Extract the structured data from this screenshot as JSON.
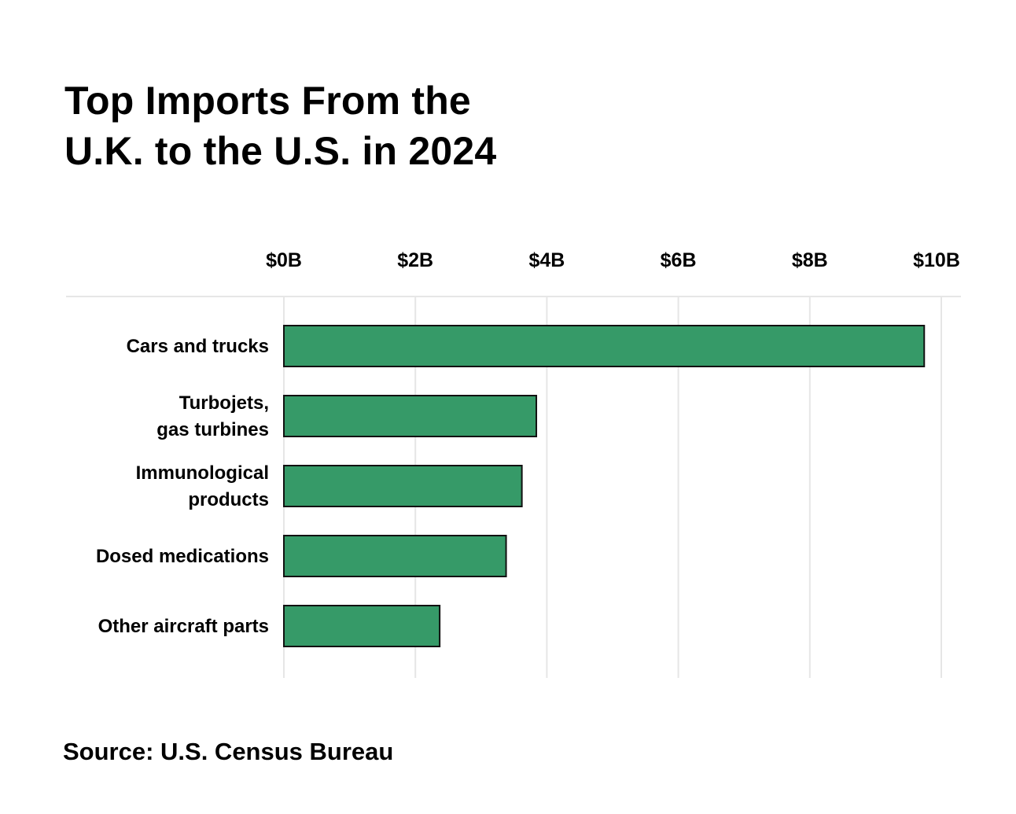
{
  "chart_data": {
    "type": "bar",
    "orientation": "horizontal",
    "title": [
      "Top Imports From the",
      "U.K. to the U.S. in 2024"
    ],
    "categories": [
      [
        "Cars and trucks"
      ],
      [
        "Turbojets,",
        "gas turbines"
      ],
      [
        "Immunological",
        "products"
      ],
      [
        "Dosed medications"
      ],
      [
        "Other aircraft parts"
      ]
    ],
    "values": [
      9.74,
      3.84,
      3.62,
      3.38,
      2.37
    ],
    "unit": "billion USD",
    "xlim": [
      0,
      10
    ],
    "ticks": [
      0,
      2,
      4,
      6,
      8,
      10
    ],
    "tick_labels": [
      "$0B",
      "$2B",
      "$4B",
      "$6B",
      "$8B",
      "$10B"
    ],
    "axis_position": "top",
    "grid": true,
    "legend": "none",
    "bar_color": "#369a68",
    "bar_outline": "#111111",
    "grid_color": "#e6e6e6"
  },
  "source": "Source: U.S. Census Bureau"
}
